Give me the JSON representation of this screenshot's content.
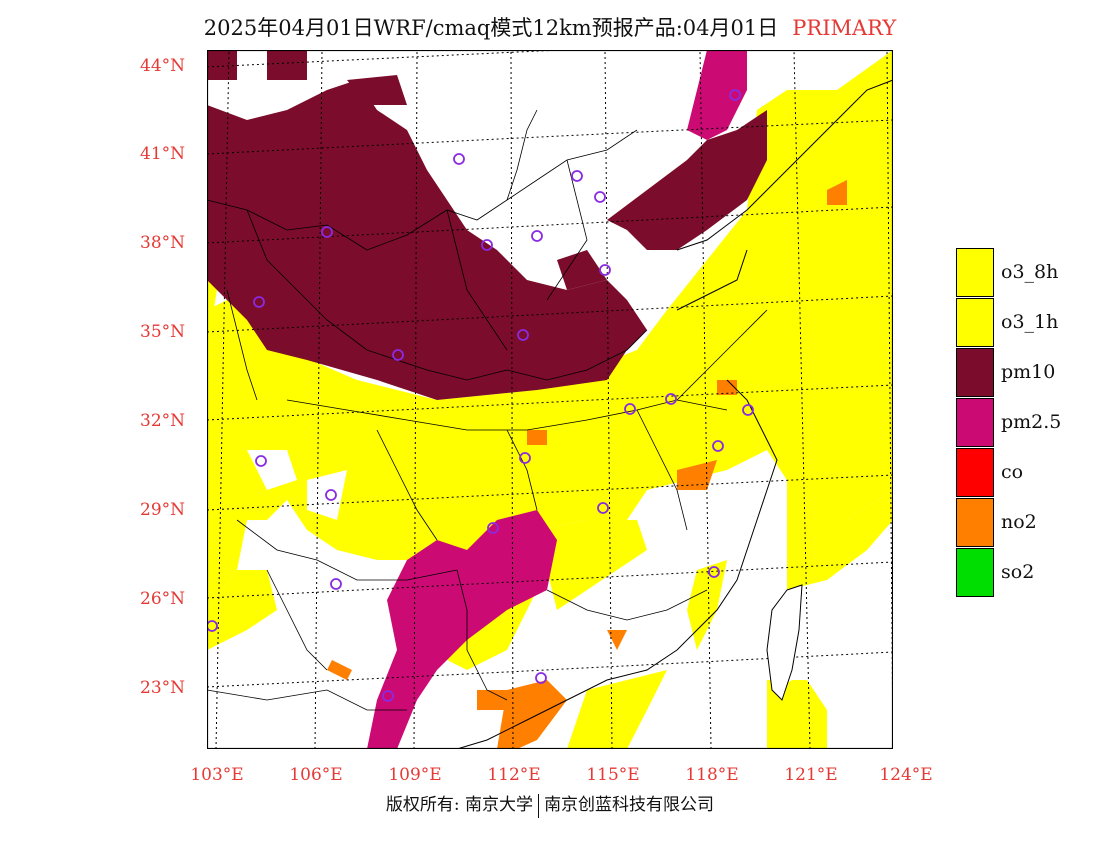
{
  "title": {
    "main": "2025年04月01日WRF/cmaq模式12km预报产品:04月01日",
    "tag": "PRIMARY"
  },
  "axes": {
    "lat_labels": [
      "44°N",
      "41°N",
      "38°N",
      "35°N",
      "32°N",
      "29°N",
      "26°N",
      "23°N"
    ],
    "lon_labels": [
      "103°E",
      "106°E",
      "109°E",
      "112°E",
      "115°E",
      "118°E",
      "121°E",
      "124°E"
    ]
  },
  "legend": {
    "items": [
      {
        "label": "o3_8h",
        "color": "#ffff00"
      },
      {
        "label": "o3_1h",
        "color": "#ffff00"
      },
      {
        "label": "pm10",
        "color": "#7b0c2b"
      },
      {
        "label": "pm2.5",
        "color": "#cc0a74"
      },
      {
        "label": "co",
        "color": "#ff0000"
      },
      {
        "label": "no2",
        "color": "#ff7f00"
      },
      {
        "label": "so2",
        "color": "#00dd00"
      }
    ]
  },
  "colors": {
    "station_marker": "#8a2be2",
    "label_red": "#e53935",
    "o3": "#ffff00",
    "pm10": "#7b0c2b",
    "pm25": "#cc0a74",
    "no2": "#ff7f00"
  },
  "footer": {
    "left": "版权所有: 南京大学",
    "right": "南京创蓝科技有限公司"
  }
}
